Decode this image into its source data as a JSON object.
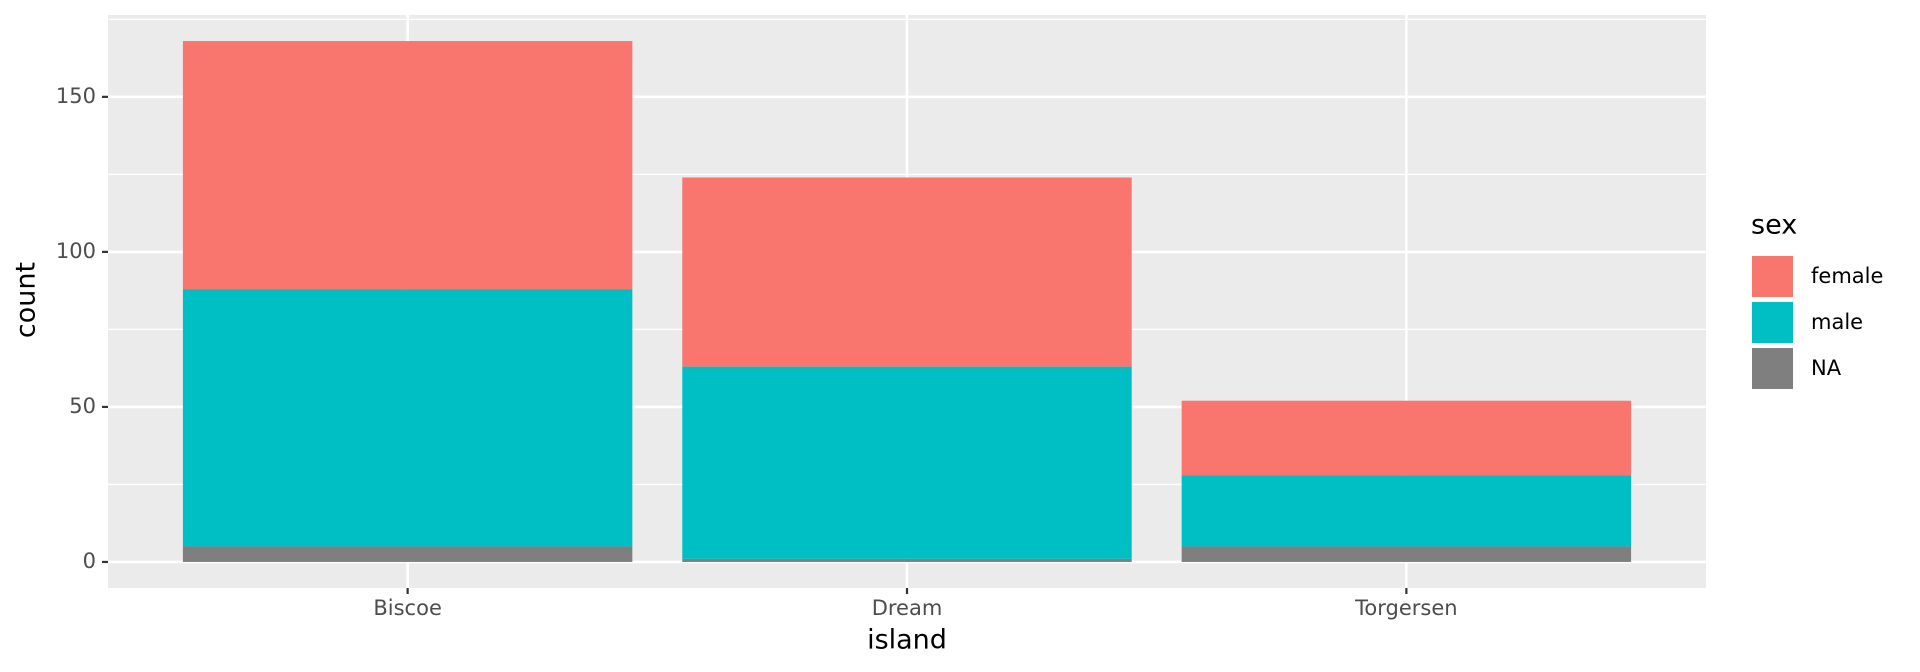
{
  "chart_data": {
    "type": "stacked_bar",
    "x_label": "island",
    "y_label": "count",
    "categories": [
      "Biscoe",
      "Dream",
      "Torgersen"
    ],
    "series": [
      {
        "name": "NA",
        "color": "#7f7f7f",
        "values": [
          5,
          1,
          5
        ]
      },
      {
        "name": "male",
        "color": "#00bfc4",
        "values": [
          83,
          62,
          23
        ]
      },
      {
        "name": "female",
        "color": "#f8766d",
        "values": [
          80,
          61,
          24
        ]
      }
    ],
    "ylim": [
      -8.4,
      176.4
    ],
    "yticks": [
      0,
      50,
      100,
      150
    ],
    "grid": true,
    "legend": {
      "title": "sex",
      "position": "right",
      "order": [
        "female",
        "male",
        "NA"
      ]
    }
  }
}
